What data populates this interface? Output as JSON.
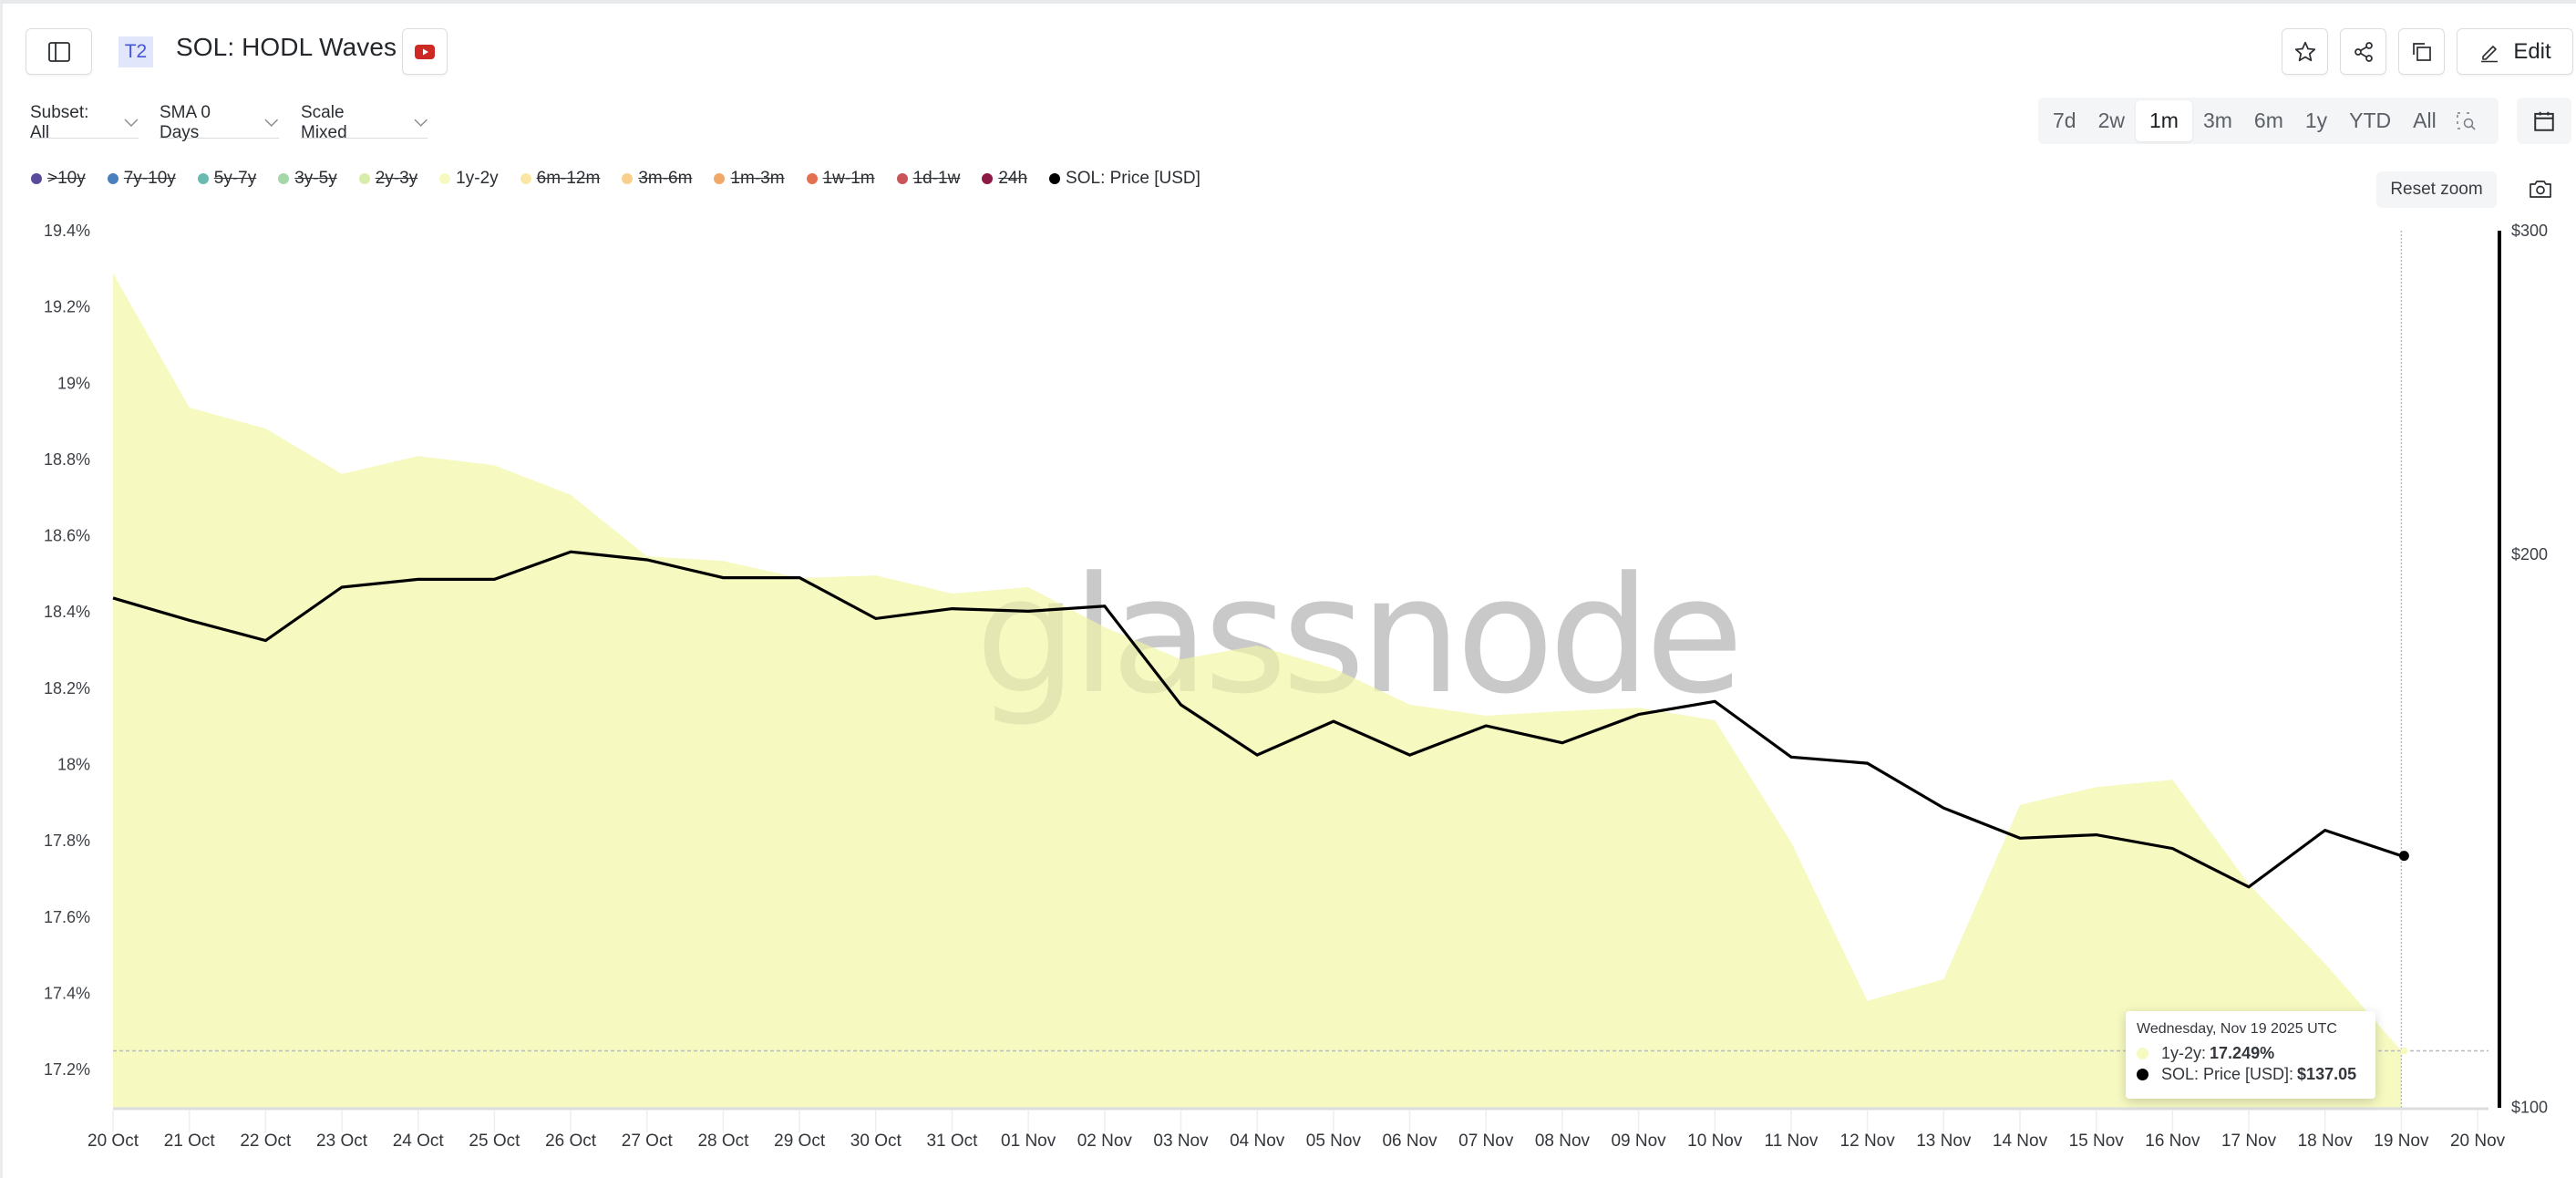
{
  "header": {
    "tier_badge": "T2",
    "title": "SOL: HODL Waves",
    "edit_label": "Edit",
    "icons": [
      "sidebar-toggle-icon",
      "youtube-icon",
      "star-icon",
      "share-icon",
      "copy-icon",
      "pencil-icon"
    ]
  },
  "controls": {
    "subset": "Subset: All",
    "sma": "SMA 0 Days",
    "scale": "Scale Mixed",
    "ranges": [
      {
        "label": "7d",
        "active": false
      },
      {
        "label": "2w",
        "active": false
      },
      {
        "label": "1m",
        "active": true
      },
      {
        "label": "3m",
        "active": false
      },
      {
        "label": "6m",
        "active": false
      },
      {
        "label": "1y",
        "active": false
      },
      {
        "label": "YTD",
        "active": false
      },
      {
        "label": "All",
        "active": false
      }
    ],
    "reset_zoom": "Reset zoom"
  },
  "legend": [
    {
      "label": ">10y",
      "color": "#5b4a9c",
      "enabled": false
    },
    {
      "label": "7y-10y",
      "color": "#4a80bd",
      "enabled": false
    },
    {
      "label": "5y-7y",
      "color": "#69bbb1",
      "enabled": false
    },
    {
      "label": "3y-5y",
      "color": "#a6d7a9",
      "enabled": false
    },
    {
      "label": "2y-3y",
      "color": "#d9edaa",
      "enabled": false
    },
    {
      "label": "1y-2y",
      "color": "#f6f9c0",
      "enabled": true
    },
    {
      "label": "6m-12m",
      "color": "#fbe7a4",
      "enabled": false
    },
    {
      "label": "3m-6m",
      "color": "#f8d08c",
      "enabled": false
    },
    {
      "label": "1m-3m",
      "color": "#f1a96a",
      "enabled": false
    },
    {
      "label": "1w-1m",
      "color": "#e3714f",
      "enabled": false
    },
    {
      "label": "1d-1w",
      "color": "#c9545a",
      "enabled": false
    },
    {
      "label": "24h",
      "color": "#8c1a45",
      "enabled": false
    },
    {
      "label": "SOL: Price [USD]",
      "color": "#000000",
      "enabled": true
    }
  ],
  "watermark": "glassnode",
  "tooltip": {
    "date": "Wednesday, Nov 19 2025 UTC",
    "rows": [
      {
        "label": "1y-2y:",
        "value": "17.249%",
        "color": "#f6f9c0"
      },
      {
        "label": "SOL: Price [USD]:",
        "value": "$137.05",
        "color": "#000000"
      }
    ]
  },
  "chart_data": {
    "type": "area",
    "title": "SOL: HODL Waves",
    "xlabel": "",
    "ylabel": "",
    "y_left": {
      "ticks": [
        "19.4%",
        "19.2%",
        "19%",
        "18.8%",
        "18.6%",
        "18.4%",
        "18.2%",
        "18%",
        "17.8%",
        "17.6%",
        "17.4%",
        "17.2%"
      ],
      "range": [
        17.1,
        19.4
      ],
      "unit": "%"
    },
    "y_right": {
      "ticks": [
        "$300",
        "$200",
        "$100"
      ],
      "range": [
        100,
        300
      ],
      "scale": "log",
      "unit": "USD"
    },
    "x": [
      "20 Oct",
      "21 Oct",
      "22 Oct",
      "23 Oct",
      "24 Oct",
      "25 Oct",
      "26 Oct",
      "27 Oct",
      "28 Oct",
      "29 Oct",
      "30 Oct",
      "31 Oct",
      "01 Nov",
      "02 Nov",
      "03 Nov",
      "04 Nov",
      "05 Nov",
      "06 Nov",
      "07 Nov",
      "08 Nov",
      "09 Nov",
      "10 Nov",
      "11 Nov",
      "12 Nov",
      "13 Nov",
      "14 Nov",
      "15 Nov",
      "16 Nov",
      "17 Nov",
      "18 Nov",
      "19 Nov"
    ],
    "x_ticks": [
      "20 Oct",
      "21 Oct",
      "22 Oct",
      "23 Oct",
      "24 Oct",
      "25 Oct",
      "26 Oct",
      "27 Oct",
      "28 Oct",
      "29 Oct",
      "30 Oct",
      "31 Oct",
      "01 Nov",
      "02 Nov",
      "03 Nov",
      "04 Nov",
      "05 Nov",
      "06 Nov",
      "07 Nov",
      "08 Nov",
      "09 Nov",
      "10 Nov",
      "11 Nov",
      "12 Nov",
      "13 Nov",
      "14 Nov",
      "15 Nov",
      "16 Nov",
      "17 Nov",
      "18 Nov",
      "19 Nov",
      "20 Nov"
    ],
    "series": [
      {
        "name": "1y-2y",
        "type": "area",
        "axis": "left",
        "color": "#f6f9c0",
        "values": [
          19.288,
          18.936,
          18.881,
          18.762,
          18.809,
          18.785,
          18.707,
          18.546,
          18.534,
          18.489,
          18.496,
          18.448,
          18.465,
          18.36,
          18.276,
          18.312,
          18.252,
          18.157,
          18.128,
          18.14,
          18.149,
          18.116,
          17.796,
          17.38,
          17.437,
          17.894,
          17.941,
          17.96,
          17.686,
          17.478,
          17.249
        ]
      },
      {
        "name": "SOL: Price [USD]",
        "type": "line",
        "axis": "right",
        "color": "#000000",
        "values": [
          189.3,
          184.1,
          179.5,
          191.9,
          193.8,
          193.8,
          200.6,
          198.6,
          194.2,
          194.2,
          184.5,
          186.8,
          186.2,
          187.4,
          165.6,
          155.5,
          162.2,
          155.5,
          161.3,
          157.9,
          163.6,
          166.3,
          155.1,
          153.9,
          145.5,
          140.1,
          140.7,
          138.3,
          131.8,
          141.5,
          137.05
        ]
      }
    ],
    "crosshair": {
      "x": "19 Nov",
      "y": 17.249
    },
    "grid": false,
    "legend_position": "top"
  }
}
